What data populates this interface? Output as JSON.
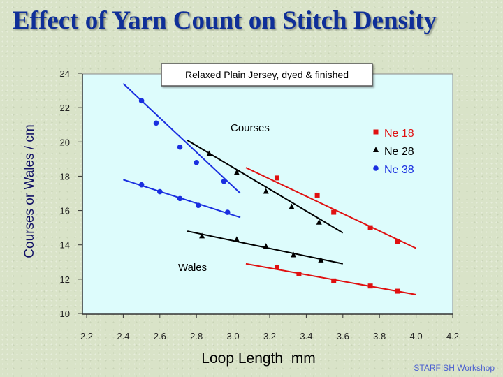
{
  "title": "Effect of Yarn Count on Stitch Density",
  "footer": "STARFISH Workshop",
  "colors": {
    "title": "#0f2f98",
    "plot_background": "#ddfcfc",
    "ne18": "#e01010",
    "ne28": "#000000",
    "ne38": "#1a2fe0"
  },
  "chart_data": {
    "type": "scatter",
    "subtitle": "Relaxed Plain Jersey, dyed & finished",
    "xlabel": "Loop Length  mm",
    "ylabel": "Courses or Wales / cm",
    "xlim": [
      2.2,
      4.2
    ],
    "ylim": [
      10,
      24
    ],
    "x_ticks": [
      "2.2",
      "2.4",
      "2.6",
      "2.8",
      "3.0",
      "3.2",
      "3.4",
      "3.6",
      "3.8",
      "4.0",
      "4.2"
    ],
    "y_ticks": [
      "10",
      "12",
      "14",
      "16",
      "18",
      "20",
      "22",
      "24"
    ],
    "grid": false,
    "legend_position": "top-right",
    "annotations": [
      "Courses",
      "Wales"
    ],
    "series": [
      {
        "name": "Ne 18",
        "group": "Courses",
        "marker": "square",
        "color": "#e01010",
        "points": [
          [
            3.24,
            17.9
          ],
          [
            3.46,
            16.9
          ],
          [
            3.55,
            15.9
          ],
          [
            3.75,
            15.0
          ],
          [
            3.9,
            14.2
          ]
        ],
        "fit": [
          [
            3.07,
            18.5
          ],
          [
            4.0,
            13.8
          ]
        ]
      },
      {
        "name": "Ne 28",
        "group": "Courses",
        "marker": "triangle",
        "color": "#000000",
        "points": [
          [
            2.87,
            19.3
          ],
          [
            3.02,
            18.2
          ],
          [
            3.18,
            17.1
          ],
          [
            3.32,
            16.2
          ],
          [
            3.47,
            15.3
          ]
        ],
        "fit": [
          [
            2.75,
            20.1
          ],
          [
            3.6,
            14.7
          ]
        ]
      },
      {
        "name": "Ne 38",
        "group": "Courses",
        "marker": "circle",
        "color": "#1a2fe0",
        "points": [
          [
            2.5,
            22.4
          ],
          [
            2.58,
            21.1
          ],
          [
            2.71,
            19.7
          ],
          [
            2.8,
            18.8
          ],
          [
            2.95,
            17.7
          ]
        ],
        "fit": [
          [
            2.4,
            23.4
          ],
          [
            3.04,
            17.0
          ]
        ]
      },
      {
        "name": "Ne 18",
        "group": "Wales",
        "marker": "square",
        "color": "#e01010",
        "points": [
          [
            3.24,
            12.7
          ],
          [
            3.36,
            12.3
          ],
          [
            3.55,
            11.9
          ],
          [
            3.75,
            11.6
          ],
          [
            3.9,
            11.3
          ]
        ],
        "fit": [
          [
            3.07,
            12.9
          ],
          [
            4.0,
            11.1
          ]
        ]
      },
      {
        "name": "Ne 28",
        "group": "Wales",
        "marker": "triangle",
        "color": "#000000",
        "points": [
          [
            2.83,
            14.5
          ],
          [
            3.02,
            14.3
          ],
          [
            3.18,
            13.9
          ],
          [
            3.33,
            13.4
          ],
          [
            3.48,
            13.1
          ]
        ],
        "fit": [
          [
            2.75,
            14.8
          ],
          [
            3.6,
            12.9
          ]
        ]
      },
      {
        "name": "Ne 38",
        "group": "Wales",
        "marker": "circle",
        "color": "#1a2fe0",
        "points": [
          [
            2.5,
            17.5
          ],
          [
            2.6,
            17.1
          ],
          [
            2.71,
            16.7
          ],
          [
            2.81,
            16.3
          ],
          [
            2.97,
            15.9
          ]
        ],
        "fit": [
          [
            2.4,
            17.8
          ],
          [
            3.04,
            15.6
          ]
        ]
      }
    ],
    "legend": [
      {
        "label": "Ne 18",
        "marker": "square",
        "color": "#e01010"
      },
      {
        "label": "Ne 28",
        "marker": "triangle",
        "color": "#000000"
      },
      {
        "label": "Ne 38",
        "marker": "circle",
        "color": "#1a2fe0"
      }
    ]
  }
}
